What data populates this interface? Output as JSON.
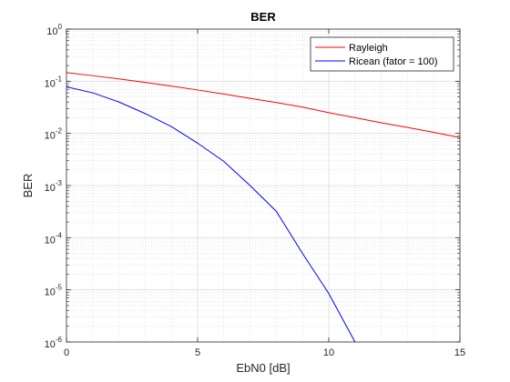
{
  "chart_data": {
    "type": "line",
    "title": "BER",
    "xlabel": "EbN0 [dB]",
    "ylabel": "BER",
    "xlim": [
      0,
      15
    ],
    "ylim": [
      1e-06,
      1
    ],
    "yscale": "log",
    "grid": true,
    "minor_grid": true,
    "legend_position": "top-right",
    "x_ticks": [
      "0",
      "5",
      "10",
      "15"
    ],
    "y_ticks": [
      {
        "base": "10",
        "exp": "0"
      },
      {
        "base": "10",
        "exp": "-1"
      },
      {
        "base": "10",
        "exp": "-2"
      },
      {
        "base": "10",
        "exp": "-3"
      },
      {
        "base": "10",
        "exp": "-4"
      },
      {
        "base": "10",
        "exp": "-5"
      },
      {
        "base": "10",
        "exp": "-6"
      }
    ],
    "series": [
      {
        "name": "Rayleigh",
        "color": "#ff0000",
        "x": [
          0,
          1,
          2,
          3,
          4,
          5,
          6,
          7,
          8,
          9,
          10,
          11,
          12,
          13,
          14,
          15
        ],
        "y": [
          0.146,
          0.128,
          0.111,
          0.095,
          0.081,
          0.068,
          0.057,
          0.047,
          0.039,
          0.032,
          0.025,
          0.02,
          0.016,
          0.013,
          0.0105,
          0.0083
        ]
      },
      {
        "name": "Ricean (fator = 100)",
        "color": "#0000ff",
        "x": [
          0,
          1,
          2,
          3,
          4,
          5,
          6,
          7,
          8,
          9,
          10,
          11
        ],
        "y": [
          0.078,
          0.06,
          0.04,
          0.024,
          0.0135,
          0.0065,
          0.0029,
          0.001,
          0.00032,
          5e-05,
          8.5e-06,
          1e-06
        ]
      }
    ]
  }
}
